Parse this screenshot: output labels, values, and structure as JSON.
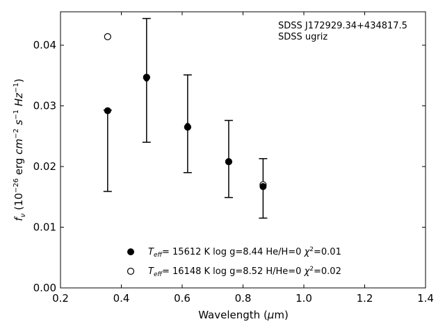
{
  "chart_data": {
    "type": "scatter",
    "title": "",
    "xlabel": "Wavelength (μm)",
    "ylabel": "fν (10⁻²⁶ erg cm⁻² s⁻¹ Hz⁻¹)",
    "xlim": [
      0.2,
      1.4
    ],
    "ylim": [
      0.0,
      0.0455
    ],
    "x_ticks": [
      "0.2",
      "0.4",
      "0.6",
      "0.8",
      "1.0",
      "1.2",
      "1.4"
    ],
    "y_ticks": [
      "0.00",
      "0.01",
      "0.02",
      "0.03",
      "0.04"
    ],
    "grid": false,
    "annotation": [
      "SDSS J172929.34+434817.5",
      "SDSS ugriz"
    ],
    "observed": {
      "x": [
        0.355,
        0.483,
        0.618,
        0.753,
        0.866
      ],
      "y": [
        0.0292,
        0.0344,
        0.0268,
        0.0207,
        0.0166
      ],
      "yerr_low": [
        0.0159,
        0.024,
        0.019,
        0.0149,
        0.0115
      ],
      "yerr_high": [
        0.0293,
        0.0444,
        0.0351,
        0.0276,
        0.0213
      ]
    },
    "series": [
      {
        "name": "Teff= 15612 K  log g=8.44  He/H=0  χ²=0.01",
        "marker": "filled-circle",
        "x": [
          0.355,
          0.483,
          0.618,
          0.753,
          0.866
        ],
        "y": [
          0.0292,
          0.0347,
          0.0265,
          0.0208,
          0.0167
        ]
      },
      {
        "name": "Teff= 16148 K  log g=8.52  H/He=0  χ²=0.02",
        "marker": "open-circle",
        "x": [
          0.355,
          0.483,
          0.618,
          0.753,
          0.866
        ],
        "y": [
          0.0414,
          0.0347,
          0.0265,
          0.0208,
          0.017
        ]
      }
    ],
    "legend_placement": "bottom-center",
    "colors": {
      "axes": "#000000",
      "markers": "#000000"
    }
  }
}
